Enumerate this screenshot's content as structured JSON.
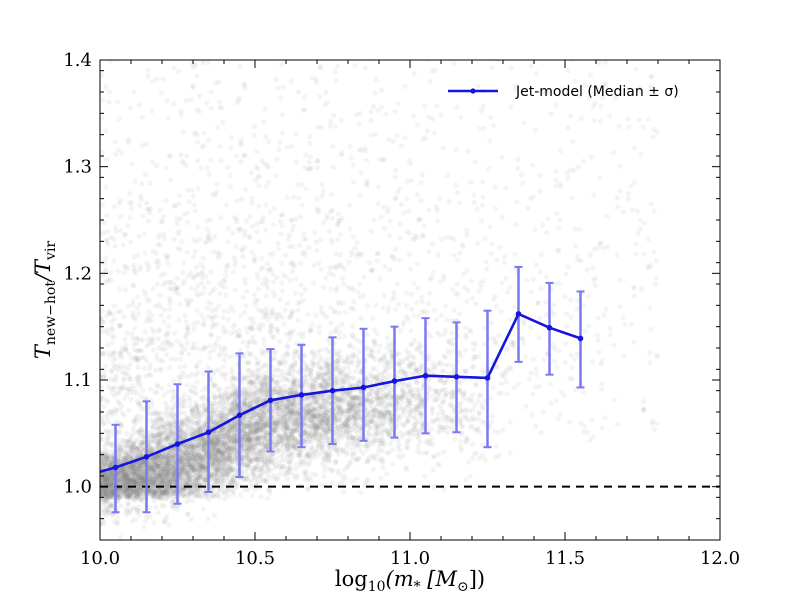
{
  "chart_data": {
    "type": "line",
    "title": "",
    "xlabel_main": "log",
    "xlabel_sub": "10",
    "xlabel_rest": "(m",
    "xlabel_star": "*",
    "xlabel_units": " [M",
    "xlabel_sun": "⊙",
    "xlabel_close": "])",
    "ylabel_main": "T",
    "ylabel_sub1": "new−hot",
    "ylabel_slash": "/T",
    "ylabel_sub2": "vir",
    "xlim": [
      10.0,
      12.0
    ],
    "ylim": [
      0.95,
      1.4
    ],
    "xticks": [
      "10.0",
      "10.5",
      "11.0",
      "11.5",
      "12.0"
    ],
    "yticks": [
      "1.0",
      "1.1",
      "1.2",
      "1.3",
      "1.4"
    ],
    "grid": false,
    "legend_position": "top-right",
    "reference_line": {
      "y": 1.0,
      "style": "dashed",
      "color": "#000000"
    },
    "colors": {
      "median": "#1515e0",
      "errorbar": "#7a7af0",
      "scatter": "#808080"
    },
    "series": [
      {
        "name": "Jet-model (Median  ±  σ)",
        "x": [
          10.0,
          10.05,
          10.15,
          10.25,
          10.35,
          10.45,
          10.55,
          10.65,
          10.75,
          10.85,
          10.95,
          11.05,
          11.15,
          11.25,
          11.35,
          11.45,
          11.55
        ],
        "y": [
          1.014,
          1.018,
          1.028,
          1.04,
          1.051,
          1.067,
          1.081,
          1.086,
          1.09,
          1.093,
          1.099,
          1.104,
          1.103,
          1.102,
          1.162,
          1.149,
          1.139
        ],
        "err_low": [
          null,
          0.976,
          0.976,
          0.984,
          0.995,
          1.009,
          1.033,
          1.037,
          1.04,
          1.043,
          1.046,
          1.05,
          1.051,
          1.037,
          1.117,
          1.105,
          1.093
        ],
        "err_high": [
          null,
          1.058,
          1.08,
          1.096,
          1.108,
          1.125,
          1.129,
          1.133,
          1.14,
          1.148,
          1.15,
          1.158,
          1.154,
          1.165,
          1.206,
          1.191,
          1.183
        ]
      }
    ],
    "scatter_density": {
      "description_points": "cloud of many semi-transparent grey points, dense at low y near 1.0-1.1 rising with x",
      "median_x_centers": [
        10.05,
        10.15,
        10.25,
        10.35,
        10.45,
        10.55,
        10.65,
        10.75,
        10.85,
        10.95,
        11.05,
        11.15,
        11.25,
        11.35,
        11.45,
        11.55,
        11.65
      ],
      "core_sigma": [
        0.018,
        0.02,
        0.022,
        0.024,
        0.025,
        0.026,
        0.026,
        0.027,
        0.027,
        0.028,
        0.028,
        0.03,
        0.035,
        0.04,
        0.04,
        0.04,
        0.04
      ],
      "relative_density": [
        1.0,
        0.95,
        0.9,
        0.85,
        0.8,
        0.72,
        0.62,
        0.52,
        0.42,
        0.32,
        0.22,
        0.14,
        0.08,
        0.04,
        0.025,
        0.015,
        0.01
      ]
    }
  }
}
